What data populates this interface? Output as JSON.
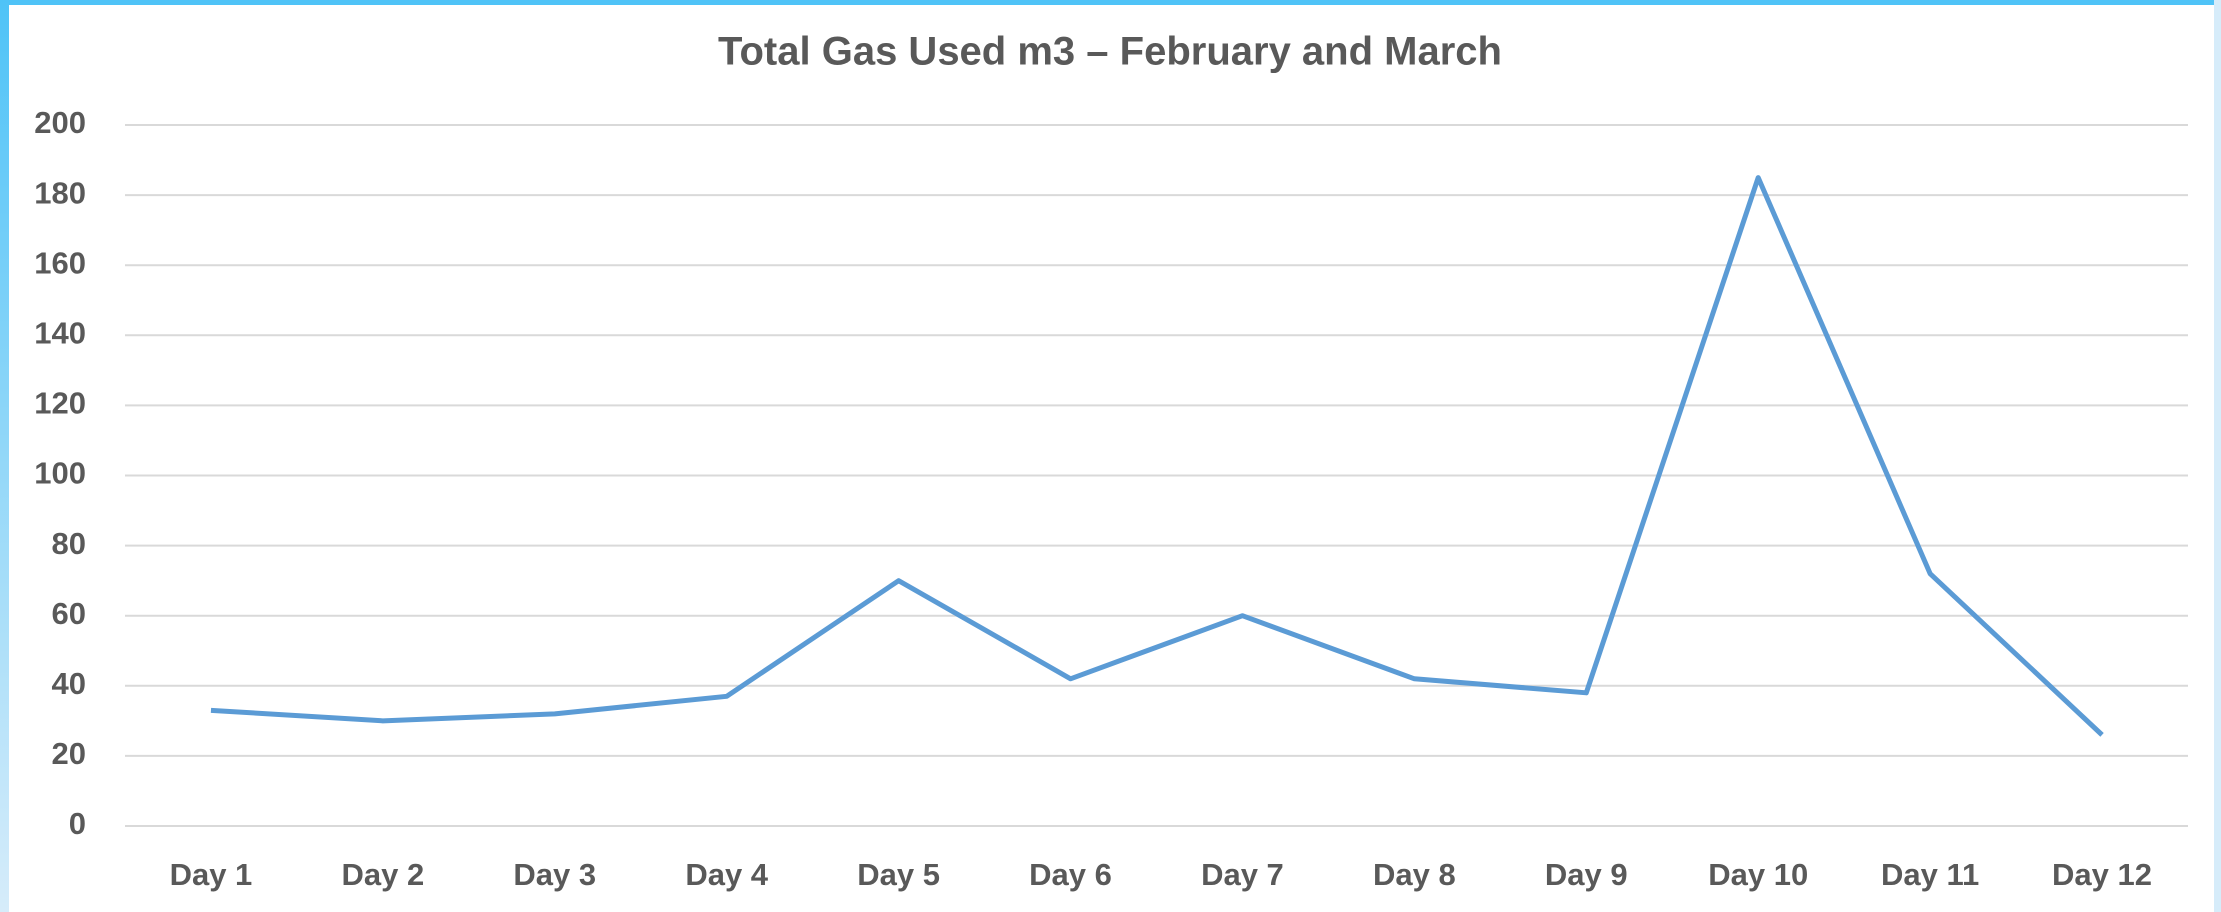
{
  "chart_data": {
    "type": "line",
    "title": "Total Gas Used m3 – February and March",
    "categories": [
      "Day 1",
      "Day 2",
      "Day 3",
      "Day 4",
      "Day 5",
      "Day 6",
      "Day 7",
      "Day 8",
      "Day 9",
      "Day 10",
      "Day 11",
      "Day 12"
    ],
    "series": [
      {
        "name": "Total Gas Used m3",
        "color": "#5b9bd5",
        "values": [
          33,
          30,
          32,
          37,
          70,
          42,
          60,
          42,
          38,
          185,
          72,
          26
        ]
      }
    ],
    "ylim": [
      0,
      200
    ],
    "yticks": [
      0,
      20,
      40,
      60,
      80,
      100,
      120,
      140,
      160,
      180,
      200
    ],
    "grid": true,
    "legend": false
  }
}
